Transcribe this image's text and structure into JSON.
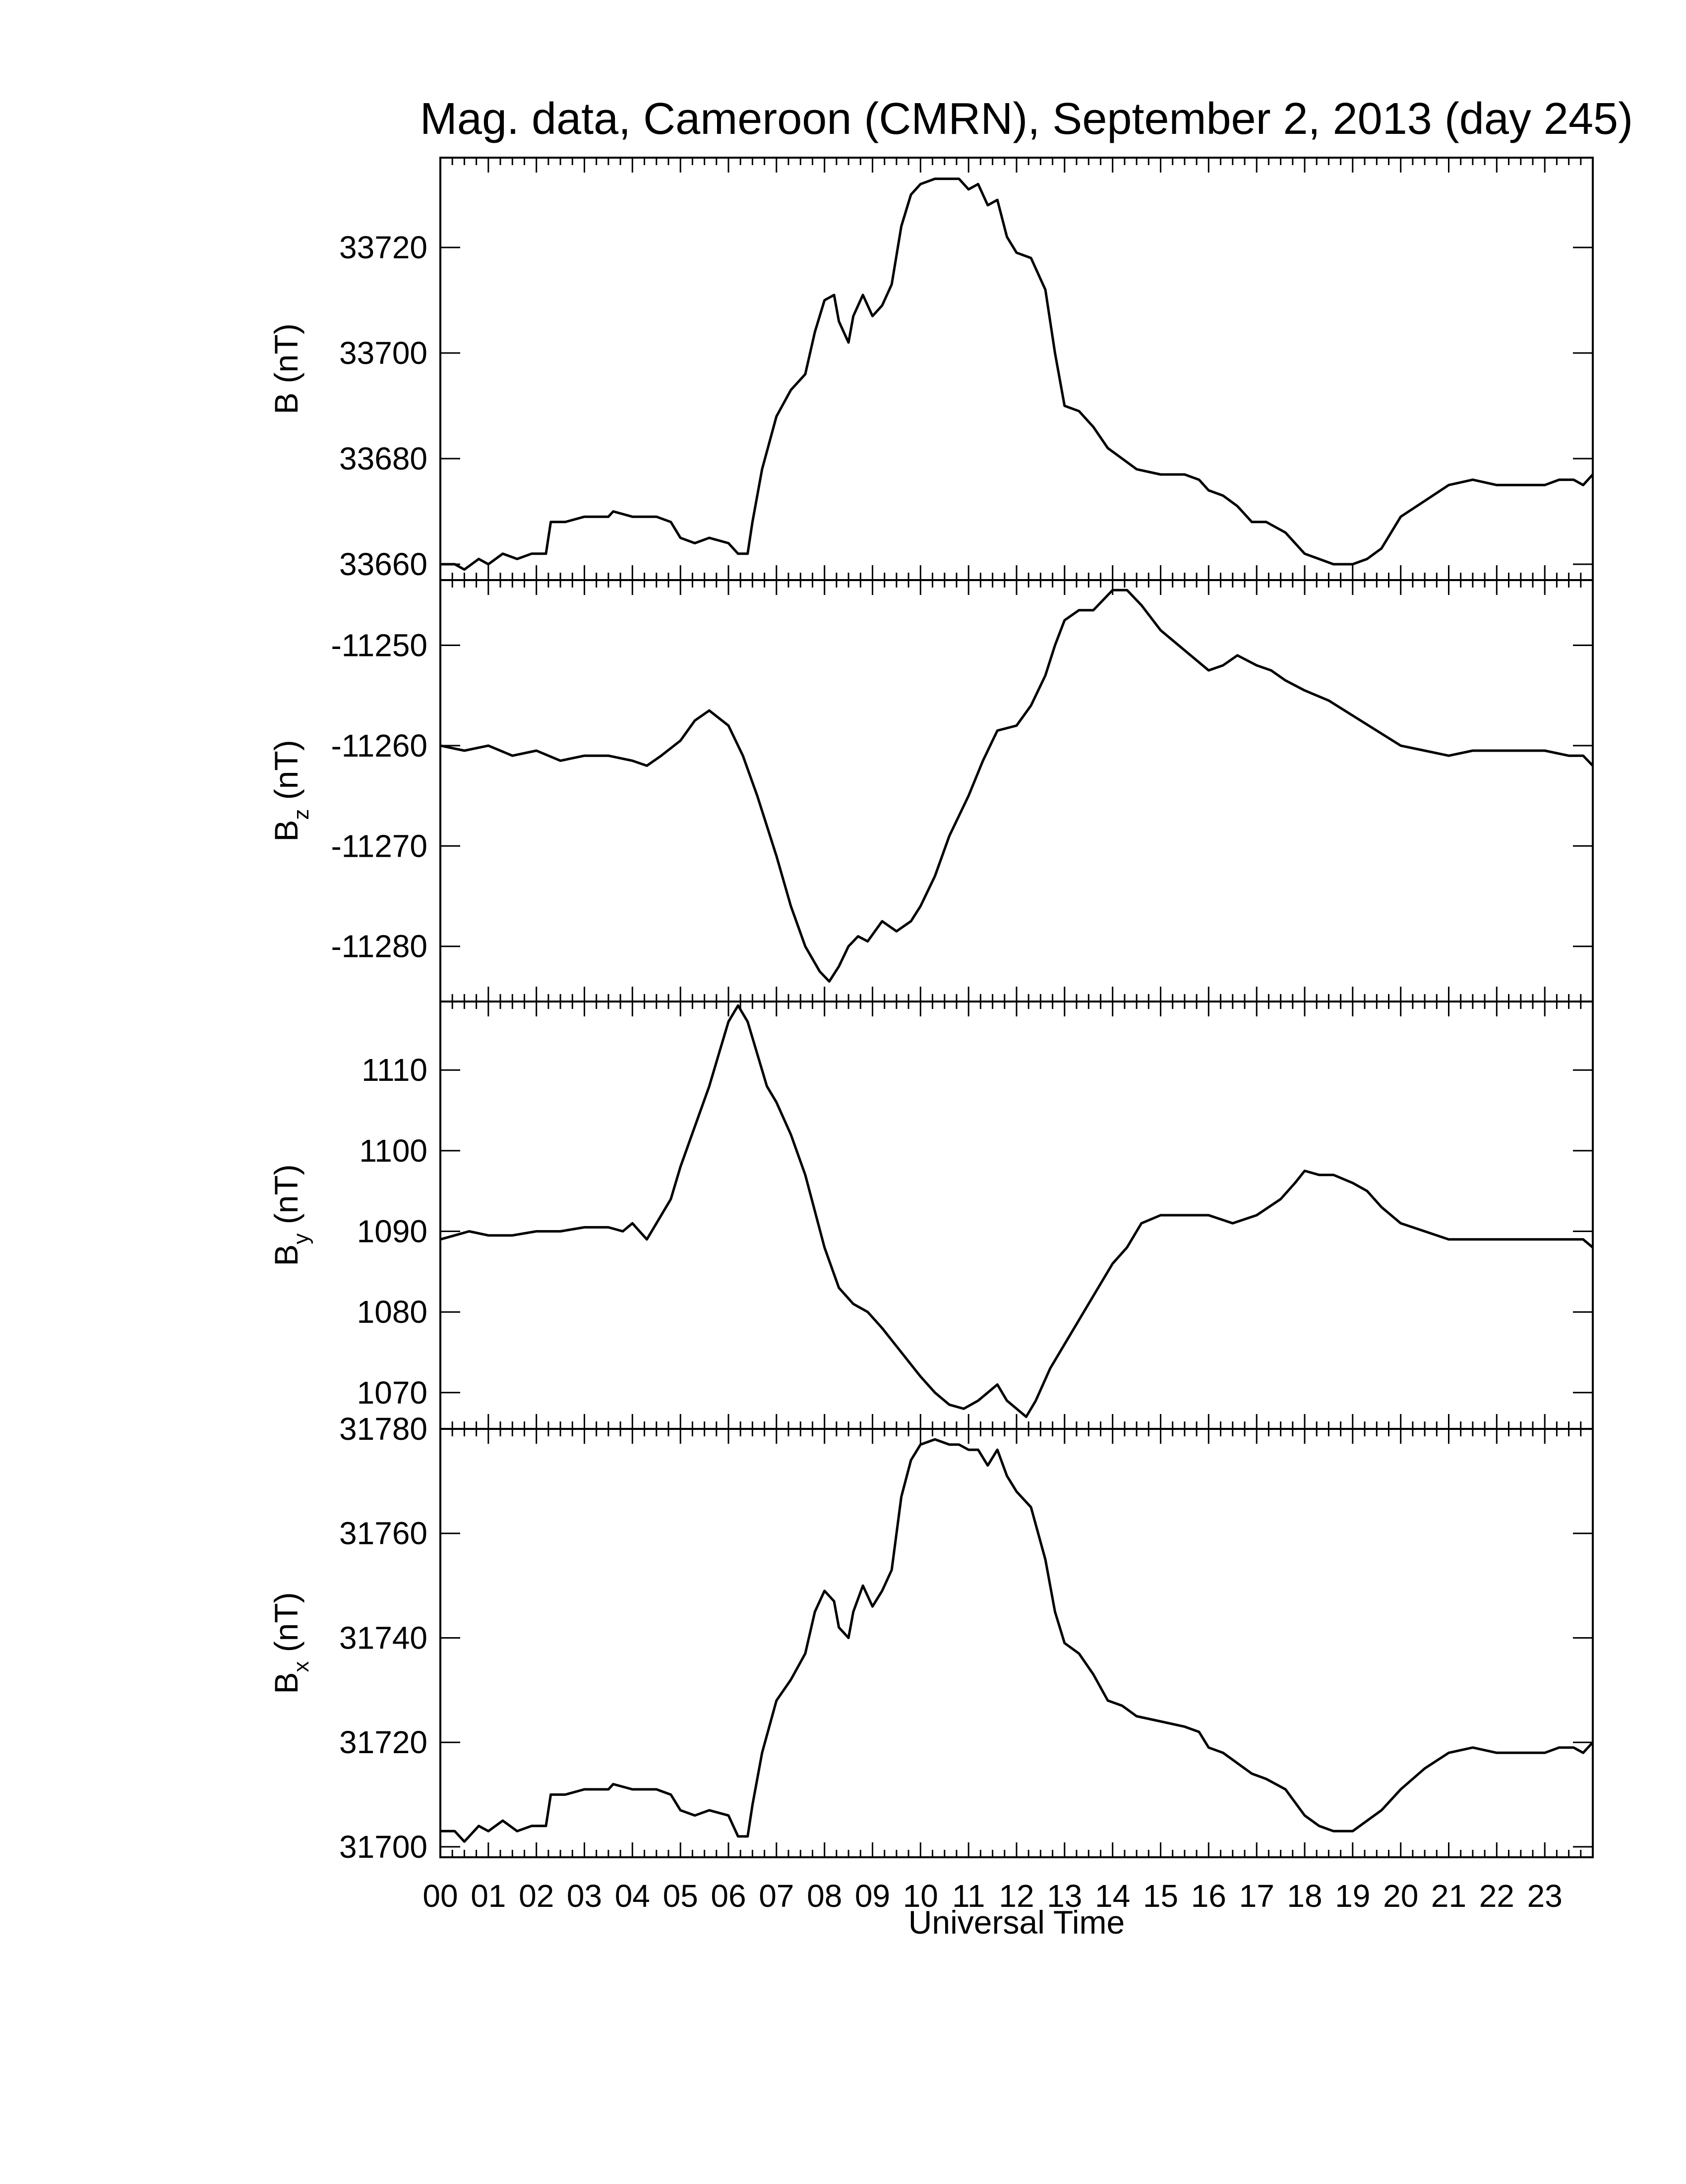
{
  "chart_data": [
    {
      "type": "line",
      "title": "Mag. data, Cameroon (CMRN), September 2, 2013 (day 245)",
      "ylabel": "B (nT)",
      "ylabel_base": "B",
      "ylabel_sub": "",
      "ylabel_unit": "(nT)",
      "ylim": [
        33657,
        33737
      ],
      "yticks": [
        33660,
        33680,
        33700,
        33720
      ],
      "xlim": [
        0,
        24
      ],
      "series": [
        {
          "x": [
            0,
            0.3,
            0.5,
            0.8,
            1.0,
            1.3,
            1.6,
            1.9,
            2.2,
            2.3,
            2.6,
            3.0,
            3.5,
            3.6,
            4.0,
            4.5,
            4.8,
            5.0,
            5.3,
            5.6,
            6.0,
            6.2,
            6.4,
            6.5,
            6.7,
            7.0,
            7.3,
            7.6,
            7.8,
            8.0,
            8.2,
            8.3,
            8.5,
            8.6,
            8.8,
            9.0,
            9.2,
            9.4,
            9.6,
            9.8,
            10.0,
            10.3,
            10.6,
            10.8,
            11.0,
            11.2,
            11.4,
            11.6,
            11.8,
            12.0,
            12.3,
            12.6,
            12.8,
            13.0,
            13.3,
            13.6,
            13.9,
            14.2,
            14.5,
            15.0,
            15.5,
            15.8,
            16.0,
            16.3,
            16.6,
            16.9,
            17.2,
            17.6,
            18.0,
            18.3,
            18.6,
            19.0,
            19.3,
            19.6,
            20.0,
            20.5,
            21.0,
            21.5,
            22.0,
            22.5,
            23.0,
            23.3,
            23.6,
            23.8,
            24.0
          ],
          "y": [
            33660,
            33660,
            33659,
            33661,
            33660,
            33662,
            33661,
            33662,
            33662,
            33668,
            33668,
            33669,
            33669,
            33670,
            33669,
            33669,
            33668,
            33665,
            33664,
            33665,
            33664,
            33662,
            33662,
            33668,
            33678,
            33688,
            33693,
            33696,
            33704,
            33710,
            33711,
            33706,
            33702,
            33707,
            33711,
            33707,
            33709,
            33713,
            33724,
            33730,
            33732,
            33733,
            33733,
            33733,
            33731,
            33732,
            33728,
            33729,
            33722,
            33719,
            33718,
            33712,
            33700,
            33690,
            33689,
            33686,
            33682,
            33680,
            33678,
            33677,
            33677,
            33676,
            33674,
            33673,
            33671,
            33668,
            33668,
            33666,
            33662,
            33661,
            33660,
            33660,
            33661,
            33663,
            33669,
            33672,
            33675,
            33676,
            33675,
            33675,
            33675,
            33676,
            33676,
            33675,
            33677
          ]
        }
      ]
    },
    {
      "type": "line",
      "ylabel": "Bz (nT)",
      "ylabel_base": "B",
      "ylabel_sub": "z",
      "ylabel_unit": "(nT)",
      "ylim": [
        -11285.5,
        -11243.5
      ],
      "yticks": [
        -11250,
        -11260,
        -11270,
        -11280
      ],
      "xlim": [
        0,
        24
      ],
      "series": [
        {
          "x": [
            0,
            0.5,
            1.0,
            1.5,
            2.0,
            2.5,
            3.0,
            3.5,
            4.0,
            4.3,
            4.6,
            5.0,
            5.3,
            5.6,
            6.0,
            6.3,
            6.6,
            7.0,
            7.3,
            7.6,
            7.9,
            8.1,
            8.3,
            8.5,
            8.7,
            8.9,
            9.2,
            9.5,
            9.8,
            10.0,
            10.3,
            10.6,
            11.0,
            11.3,
            11.6,
            12.0,
            12.3,
            12.6,
            12.8,
            13.0,
            13.3,
            13.6,
            14.0,
            14.3,
            14.6,
            15.0,
            15.5,
            16.0,
            16.3,
            16.6,
            17.0,
            17.3,
            17.6,
            18.0,
            18.5,
            19.0,
            19.5,
            20.0,
            20.5,
            21.0,
            21.5,
            22.0,
            22.5,
            23.0,
            23.5,
            23.8,
            24.0
          ],
          "y": [
            -11260,
            -11260.5,
            -11260,
            -11261,
            -11260.5,
            -11261.5,
            -11261,
            -11261,
            -11261.5,
            -11262,
            -11261,
            -11259.5,
            -11257.5,
            -11256.5,
            -11258,
            -11261,
            -11265,
            -11271,
            -11276,
            -11280,
            -11282.5,
            -11283.5,
            -11282,
            -11280,
            -11279,
            -11279.5,
            -11277.5,
            -11278.5,
            -11277.5,
            -11276,
            -11273,
            -11269,
            -11265,
            -11261.5,
            -11258.5,
            -11258,
            -11256,
            -11253,
            -11250,
            -11247.5,
            -11246.5,
            -11246.5,
            -11244.5,
            -11244.5,
            -11246,
            -11248.5,
            -11250.5,
            -11252.5,
            -11252,
            -11251,
            -11252,
            -11252.5,
            -11253.5,
            -11254.5,
            -11255.5,
            -11257,
            -11258.5,
            -11260,
            -11260.5,
            -11261,
            -11260.5,
            -11260.5,
            -11260.5,
            -11260.5,
            -11261,
            -11261,
            -11262
          ]
        }
      ]
    },
    {
      "type": "line",
      "ylabel": "By (nT)",
      "ylabel_base": "B",
      "ylabel_sub": "y",
      "ylabel_unit": "(nT)",
      "ylim": [
        1065.5,
        1118.5
      ],
      "yticks": [
        1070,
        1080,
        1090,
        1100,
        1110
      ],
      "xlim": [
        0,
        24
      ],
      "series": [
        {
          "x": [
            0,
            0.3,
            0.6,
            1.0,
            1.5,
            2.0,
            2.5,
            3.0,
            3.5,
            3.8,
            4.0,
            4.3,
            4.5,
            4.8,
            5.0,
            5.3,
            5.6,
            5.8,
            6.0,
            6.2,
            6.4,
            6.6,
            6.8,
            7.0,
            7.3,
            7.6,
            8.0,
            8.3,
            8.6,
            8.9,
            9.2,
            9.6,
            10.0,
            10.3,
            10.6,
            10.9,
            11.2,
            11.4,
            11.6,
            11.8,
            12.0,
            12.2,
            12.4,
            12.7,
            13.0,
            13.3,
            13.6,
            14.0,
            14.3,
            14.6,
            15.0,
            15.5,
            16.0,
            16.5,
            17.0,
            17.5,
            17.8,
            18.0,
            18.3,
            18.6,
            19.0,
            19.3,
            19.6,
            20.0,
            20.5,
            21.0,
            21.5,
            22.0,
            22.5,
            23.0,
            23.5,
            23.8,
            24.0
          ],
          "y": [
            1089,
            1089.5,
            1090,
            1089.5,
            1089.5,
            1090,
            1090,
            1090.5,
            1090.5,
            1090,
            1091,
            1089,
            1091,
            1094,
            1098,
            1103,
            1108,
            1112,
            1116,
            1118,
            1116,
            1112,
            1108,
            1106,
            1102,
            1097,
            1088,
            1083,
            1081,
            1080,
            1078,
            1075,
            1072,
            1070,
            1068.5,
            1068,
            1069,
            1070,
            1071,
            1069,
            1068,
            1067,
            1069,
            1073,
            1076,
            1079,
            1082,
            1086,
            1088,
            1091,
            1092,
            1092,
            1092,
            1091,
            1092,
            1094,
            1096,
            1097.5,
            1097,
            1097,
            1096,
            1095,
            1093,
            1091,
            1090,
            1089,
            1089,
            1089,
            1089,
            1089,
            1089,
            1089,
            1088
          ]
        }
      ]
    },
    {
      "type": "line",
      "ylabel": "Bx (nT)",
      "ylabel_base": "B",
      "ylabel_sub": "x",
      "ylabel_unit": "(nT)",
      "ylim": [
        31698,
        31780
      ],
      "yticks": [
        31700,
        31720,
        31740,
        31760,
        31780
      ],
      "xlabel": "Universal Time",
      "xtick_labels": [
        "00",
        "01",
        "02",
        "03",
        "04",
        "05",
        "06",
        "07",
        "08",
        "09",
        "10",
        "11",
        "12",
        "13",
        "14",
        "15",
        "16",
        "17",
        "18",
        "19",
        "20",
        "21",
        "22",
        "23"
      ],
      "xlim": [
        0,
        24
      ],
      "series": [
        {
          "x": [
            0,
            0.3,
            0.5,
            0.8,
            1.0,
            1.3,
            1.6,
            1.9,
            2.2,
            2.3,
            2.6,
            3.0,
            3.5,
            3.6,
            4.0,
            4.5,
            4.8,
            5.0,
            5.3,
            5.6,
            6.0,
            6.2,
            6.4,
            6.5,
            6.7,
            7.0,
            7.3,
            7.6,
            7.8,
            8.0,
            8.2,
            8.3,
            8.5,
            8.6,
            8.8,
            9.0,
            9.2,
            9.4,
            9.6,
            9.8,
            10.0,
            10.3,
            10.6,
            10.8,
            11.0,
            11.2,
            11.4,
            11.6,
            11.8,
            12.0,
            12.3,
            12.6,
            12.8,
            13.0,
            13.3,
            13.6,
            13.9,
            14.2,
            14.5,
            15.0,
            15.5,
            15.8,
            16.0,
            16.3,
            16.6,
            16.9,
            17.2,
            17.6,
            18.0,
            18.3,
            18.6,
            19.0,
            19.3,
            19.6,
            20.0,
            20.5,
            21.0,
            21.5,
            22.0,
            22.5,
            23.0,
            23.3,
            23.6,
            23.8,
            24.0
          ],
          "y": [
            31703,
            31703,
            31701,
            31704,
            31703,
            31705,
            31703,
            31704,
            31704,
            31710,
            31710,
            31711,
            31711,
            31712,
            31711,
            31711,
            31710,
            31707,
            31706,
            31707,
            31706,
            31702,
            31702,
            31708,
            31718,
            31728,
            31732,
            31737,
            31745,
            31749,
            31747,
            31742,
            31740,
            31745,
            31750,
            31746,
            31749,
            31753,
            31767,
            31774,
            31777,
            31778,
            31777,
            31777,
            31776,
            31776,
            31773,
            31776,
            31771,
            31768,
            31765,
            31755,
            31745,
            31739,
            31737,
            31733,
            31728,
            31727,
            31725,
            31724,
            31723,
            31722,
            31719,
            31718,
            31716,
            31714,
            31713,
            31711,
            31706,
            31704,
            31703,
            31703,
            31705,
            31707,
            31711,
            31715,
            31718,
            31719,
            31718,
            31718,
            31718,
            31719,
            31719,
            31718,
            31720
          ]
        }
      ]
    }
  ]
}
